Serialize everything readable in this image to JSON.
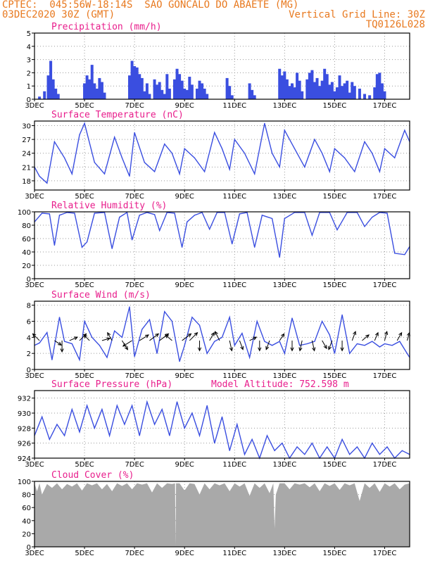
{
  "header": {
    "line1": "CPTEC:  045:56W-18:14S  SAO GONCALO DO ABAETE (MG)",
    "line2_left": "03DEC2020 30Z (GMT)",
    "line2_right": "Vertical Grid Line: 30Z",
    "line3_right": "TQ0126L028"
  },
  "colors": {
    "series": "#3a4ee0",
    "title": "#e81e8c",
    "header": "#e8791f",
    "cloud_fill": "#a9a9a9",
    "grid": "#9a9a9a"
  },
  "chart_data": [
    {
      "id": "precip",
      "type": "bar",
      "title": "Precipitation (mm/h)",
      "x_ticks": [
        "3DEC",
        "5DEC",
        "7DEC",
        "9DEC",
        "11DEC",
        "13DEC",
        "15DEC",
        "17DEC"
      ],
      "x_domain": [
        3,
        18
      ],
      "ylim": [
        0,
        5
      ],
      "y_ticks": [
        "0",
        "1",
        "2",
        "3",
        "4",
        "5"
      ],
      "grid": true,
      "x": [
        3.2,
        3.4,
        3.55,
        3.65,
        3.75,
        3.85,
        3.95,
        5.0,
        5.1,
        5.2,
        5.3,
        5.4,
        5.5,
        5.6,
        5.7,
        5.8,
        6.8,
        6.9,
        7.0,
        7.1,
        7.2,
        7.3,
        7.4,
        7.5,
        7.6,
        7.8,
        7.9,
        8.0,
        8.1,
        8.2,
        8.3,
        8.4,
        8.6,
        8.7,
        8.8,
        8.9,
        9.0,
        9.1,
        9.2,
        9.3,
        9.5,
        9.6,
        9.7,
        9.8,
        9.9,
        10.7,
        10.8,
        10.9,
        11.6,
        11.7,
        11.8,
        12.8,
        12.9,
        13.0,
        13.1,
        13.2,
        13.3,
        13.4,
        13.5,
        13.6,
        13.7,
        13.9,
        14.0,
        14.1,
        14.2,
        14.3,
        14.4,
        14.5,
        14.6,
        14.7,
        14.8,
        14.9,
        15.0,
        15.1,
        15.2,
        15.3,
        15.4,
        15.5,
        15.6,
        15.7,
        15.8,
        16.0,
        16.2,
        16.4,
        16.6,
        16.7,
        16.8,
        16.9,
        17.0
      ],
      "values": [
        0.2,
        0.6,
        1.8,
        2.9,
        1.5,
        0.8,
        0.4,
        1.2,
        1.8,
        1.5,
        2.6,
        1.2,
        0.8,
        1.6,
        1.3,
        0.5,
        1.8,
        2.9,
        2.5,
        2.4,
        1.9,
        1.6,
        0.6,
        1.2,
        0.4,
        1.5,
        1.1,
        1.3,
        0.7,
        0.4,
        1.9,
        0.8,
        1.5,
        2.3,
        1.9,
        1.4,
        0.8,
        0.7,
        1.7,
        1.1,
        0.8,
        1.4,
        1.2,
        0.8,
        0.4,
        1.6,
        1.0,
        0.3,
        1.2,
        0.7,
        0.3,
        2.3,
        1.8,
        2.1,
        1.5,
        1.0,
        1.2,
        0.9,
        2.0,
        1.4,
        0.6,
        1.5,
        2.0,
        2.2,
        1.3,
        1.6,
        1.0,
        1.4,
        2.3,
        1.9,
        1.1,
        1.3,
        0.6,
        0.9,
        1.8,
        1.0,
        1.2,
        1.4,
        0.5,
        1.3,
        1.0,
        0.8,
        0.4,
        0.3,
        0.9,
        1.9,
        2.0,
        1.2,
        0.6
      ]
    },
    {
      "id": "temp",
      "type": "line",
      "title": "Surface Temperature (nC)",
      "x_ticks": [
        "3DEC",
        "5DEC",
        "7DEC",
        "9DEC",
        "11DEC",
        "13DEC",
        "15DEC",
        "17DEC"
      ],
      "x_domain": [
        3,
        18
      ],
      "ylim": [
        16,
        31
      ],
      "y_ticks": [
        "18",
        "21",
        "24",
        "27",
        "30"
      ],
      "grid": true,
      "x": [
        3.0,
        3.2,
        3.5,
        3.8,
        4.2,
        4.5,
        4.8,
        5.0,
        5.4,
        5.8,
        6.2,
        6.5,
        6.8,
        7.0,
        7.4,
        7.8,
        8.2,
        8.5,
        8.8,
        9.0,
        9.4,
        9.8,
        10.2,
        10.5,
        10.8,
        11.0,
        11.4,
        11.8,
        12.2,
        12.5,
        12.8,
        13.0,
        13.4,
        13.8,
        14.2,
        14.5,
        14.8,
        15.0,
        15.4,
        15.8,
        16.2,
        16.5,
        16.8,
        17.0,
        17.4,
        17.8,
        18.0
      ],
      "values": [
        21,
        19,
        17.5,
        26.5,
        23,
        19.5,
        28,
        30.5,
        22,
        19.5,
        27.5,
        23,
        19,
        28.5,
        22,
        20,
        26,
        24,
        19.5,
        25,
        23,
        20,
        28.5,
        25,
        20.5,
        27,
        24,
        19.5,
        30.5,
        24,
        21,
        29,
        25,
        21,
        27,
        24,
        20,
        25,
        23,
        20,
        26.5,
        24,
        20,
        25,
        23,
        29,
        26.5
      ]
    },
    {
      "id": "rh",
      "type": "line",
      "title": "Relative Humidity (%)",
      "x_ticks": [
        "3DEC",
        "5DEC",
        "7DEC",
        "9DEC",
        "11DEC",
        "13DEC",
        "15DEC",
        "17DEC"
      ],
      "x_domain": [
        3,
        18
      ],
      "ylim": [
        0,
        100
      ],
      "y_ticks": [
        "0",
        "20",
        "40",
        "60",
        "80",
        "100"
      ],
      "grid": true,
      "x": [
        3.0,
        3.3,
        3.6,
        3.8,
        4.0,
        4.3,
        4.6,
        4.9,
        5.1,
        5.4,
        5.8,
        6.1,
        6.4,
        6.7,
        6.9,
        7.2,
        7.5,
        7.8,
        8.0,
        8.3,
        8.6,
        8.9,
        9.1,
        9.4,
        9.7,
        10.0,
        10.3,
        10.6,
        10.9,
        11.2,
        11.5,
        11.8,
        12.1,
        12.5,
        12.8,
        13.0,
        13.4,
        13.8,
        14.1,
        14.4,
        14.8,
        15.1,
        15.5,
        15.9,
        16.2,
        16.5,
        16.8,
        17.1,
        17.4,
        17.8,
        18.0
      ],
      "values": [
        85,
        98,
        97,
        50,
        95,
        99,
        98,
        47,
        55,
        98,
        99,
        45,
        92,
        99,
        58,
        95,
        99,
        96,
        72,
        99,
        98,
        47,
        85,
        95,
        99,
        74,
        99,
        99,
        52,
        97,
        99,
        47,
        95,
        90,
        32,
        90,
        99,
        99,
        65,
        99,
        99,
        73,
        99,
        99,
        78,
        92,
        99,
        98,
        38,
        36,
        48
      ]
    },
    {
      "id": "wind",
      "type": "line",
      "title": "Surface Wind (m/s)",
      "x_ticks": [
        "3DEC",
        "5DEC",
        "7DEC",
        "9DEC",
        "11DEC",
        "13DEC",
        "15DEC",
        "17DEC"
      ],
      "x_domain": [
        3,
        18
      ],
      "ylim": [
        0,
        8.5
      ],
      "y_ticks": [
        "0",
        "2",
        "4",
        "6",
        "8"
      ],
      "grid": true,
      "x": [
        3.0,
        3.2,
        3.5,
        3.7,
        4.0,
        4.2,
        4.5,
        4.8,
        5.0,
        5.3,
        5.6,
        5.9,
        6.2,
        6.5,
        6.8,
        7.0,
        7.3,
        7.6,
        7.9,
        8.2,
        8.5,
        8.8,
        9.0,
        9.3,
        9.6,
        9.9,
        10.2,
        10.5,
        10.8,
        11.0,
        11.3,
        11.6,
        11.9,
        12.2,
        12.5,
        12.8,
        13.0,
        13.3,
        13.6,
        13.9,
        14.2,
        14.5,
        14.8,
        15.0,
        15.3,
        15.6,
        15.9,
        16.2,
        16.5,
        16.8,
        17.0,
        17.3,
        17.6,
        17.9,
        18.0
      ],
      "values": [
        3,
        3.3,
        4.6,
        1.2,
        6.5,
        3.5,
        3.2,
        1.2,
        6,
        4,
        3,
        1.5,
        4.8,
        4,
        7.8,
        1.6,
        5,
        6.2,
        2,
        7.2,
        6,
        1,
        3,
        6.5,
        5.5,
        2,
        3.5,
        4,
        6.5,
        3,
        4.5,
        1.5,
        6,
        3.5,
        3,
        3.5,
        2,
        6.4,
        3,
        3.2,
        3.5,
        6,
        4.3,
        2,
        6.8,
        2,
        3.2,
        3,
        3.5,
        2.8,
        3.2,
        3,
        3.5,
        2,
        1.5
      ],
      "arrows": [
        [
          3.2,
          -0.6,
          0.6
        ],
        [
          3.8,
          0.6,
          -0.4
        ],
        [
          4.1,
          0,
          -1
        ],
        [
          4.4,
          0.7,
          0.3
        ],
        [
          4.8,
          0.6,
          0.6
        ],
        [
          5.2,
          -0.5,
          0.5
        ],
        [
          5.7,
          0.7,
          0.2
        ],
        [
          6.1,
          -0.4,
          0.7
        ],
        [
          6.5,
          0.5,
          -0.8
        ],
        [
          6.9,
          -0.8,
          -0.5
        ],
        [
          7.2,
          0.8,
          0.5
        ],
        [
          7.6,
          0.8,
          0.6
        ],
        [
          8.0,
          0.8,
          0.6
        ],
        [
          8.5,
          -0.6,
          0.5
        ],
        [
          8.9,
          0.8,
          0.6
        ],
        [
          9.2,
          0.7,
          0.7
        ],
        [
          9.6,
          0,
          -0.9
        ],
        [
          10.0,
          0.4,
          0.7
        ],
        [
          10.4,
          -0.4,
          0.8
        ],
        [
          10.8,
          0.2,
          -0.9
        ],
        [
          11.2,
          0.3,
          -0.8
        ],
        [
          11.6,
          0.6,
          0.3
        ],
        [
          12.0,
          0,
          -0.9
        ],
        [
          12.4,
          -0.3,
          -0.8
        ],
        [
          12.8,
          0.4,
          0.6
        ],
        [
          13.3,
          0,
          -0.9
        ],
        [
          13.7,
          -0.2,
          -0.9
        ],
        [
          14.1,
          0.2,
          -0.9
        ],
        [
          14.5,
          0.4,
          -0.7
        ],
        [
          14.9,
          -0.3,
          -0.8
        ],
        [
          15.3,
          0,
          -0.9
        ],
        [
          15.7,
          0.3,
          0.8
        ],
        [
          16.1,
          0.6,
          0.5
        ],
        [
          16.6,
          0.3,
          0.7
        ],
        [
          17.0,
          0.2,
          0.8
        ],
        [
          17.5,
          0.4,
          0.7
        ],
        [
          17.9,
          0.2,
          0.7
        ]
      ]
    },
    {
      "id": "pres",
      "type": "line",
      "title": "Surface Pressure (hPa)",
      "subtitle": "Model Altitude: 752.598  m",
      "x_ticks": [
        "3DEC",
        "5DEC",
        "7DEC",
        "9DEC",
        "11DEC",
        "13DEC",
        "15DEC",
        "17DEC"
      ],
      "x_domain": [
        3,
        18
      ],
      "ylim": [
        924,
        933
      ],
      "y_ticks": [
        "924",
        "926",
        "928",
        "930",
        "932"
      ],
      "grid": true,
      "x": [
        3.0,
        3.3,
        3.6,
        3.9,
        4.2,
        4.5,
        4.8,
        5.1,
        5.4,
        5.7,
        6.0,
        6.3,
        6.6,
        6.9,
        7.2,
        7.5,
        7.8,
        8.1,
        8.4,
        8.7,
        9.0,
        9.3,
        9.6,
        9.9,
        10.2,
        10.5,
        10.8,
        11.1,
        11.4,
        11.7,
        12.0,
        12.3,
        12.6,
        12.9,
        13.2,
        13.5,
        13.8,
        14.1,
        14.4,
        14.7,
        15.0,
        15.3,
        15.6,
        15.9,
        16.2,
        16.5,
        16.8,
        17.1,
        17.4,
        17.7,
        18.0
      ],
      "values": [
        927,
        929.5,
        926.5,
        928.5,
        927,
        930.5,
        927.5,
        931,
        928,
        930.5,
        927,
        931,
        928.5,
        931,
        927,
        931.5,
        928.5,
        930.5,
        927,
        931.5,
        928,
        930,
        927,
        931,
        926,
        929.5,
        925,
        928.5,
        924.5,
        926.5,
        924,
        927,
        925,
        926,
        924,
        925.5,
        924.5,
        926,
        924,
        925.5,
        924,
        926.5,
        924.5,
        925.5,
        924,
        926,
        924.5,
        925.5,
        924,
        925,
        924.5
      ]
    },
    {
      "id": "cloud",
      "type": "area",
      "title": "Cloud Cover (%)",
      "x_ticks": [
        "3DEC",
        "5DEC",
        "7DEC",
        "9DEC",
        "11DEC",
        "13DEC",
        "15DEC",
        "17DEC"
      ],
      "x_domain": [
        3,
        18
      ],
      "ylim": [
        0,
        100
      ],
      "y_ticks": [
        "0",
        "20",
        "40",
        "60",
        "80",
        "100"
      ],
      "grid": true,
      "x": [
        3.0,
        3.1,
        3.2,
        3.3,
        3.5,
        3.7,
        3.9,
        4.1,
        4.3,
        4.5,
        4.7,
        4.9,
        5.1,
        5.3,
        5.5,
        5.7,
        5.9,
        6.1,
        6.3,
        6.5,
        6.7,
        6.9,
        7.1,
        7.3,
        7.5,
        7.7,
        7.9,
        8.1,
        8.3,
        8.5,
        8.62,
        8.64,
        8.66,
        8.8,
        9.0,
        9.2,
        9.4,
        9.6,
        9.8,
        10.0,
        10.2,
        10.4,
        10.6,
        10.8,
        11.0,
        11.2,
        11.4,
        11.6,
        11.8,
        12.0,
        12.2,
        12.4,
        12.55,
        12.6,
        12.65,
        12.8,
        13.0,
        13.2,
        13.4,
        13.6,
        13.8,
        14.0,
        14.2,
        14.4,
        14.6,
        14.8,
        15.0,
        15.2,
        15.4,
        15.6,
        15.8,
        16.0,
        16.2,
        16.4,
        16.6,
        16.8,
        17.0,
        17.2,
        17.4,
        17.6,
        17.8,
        18.0
      ],
      "values": [
        97,
        85,
        97,
        80,
        96,
        90,
        97,
        88,
        96,
        92,
        97,
        86,
        97,
        94,
        97,
        88,
        96,
        85,
        97,
        93,
        97,
        88,
        97,
        95,
        97,
        83,
        97,
        90,
        97,
        96,
        97,
        2,
        97,
        97,
        86,
        97,
        96,
        80,
        97,
        88,
        97,
        94,
        97,
        85,
        97,
        92,
        97,
        78,
        97,
        90,
        97,
        82,
        97,
        28,
        80,
        97,
        97,
        88,
        97,
        95,
        97,
        91,
        97,
        85,
        97,
        93,
        97,
        87,
        97,
        94,
        97,
        70,
        97,
        90,
        97,
        84,
        97,
        92,
        97,
        88,
        95,
        97
      ]
    }
  ]
}
